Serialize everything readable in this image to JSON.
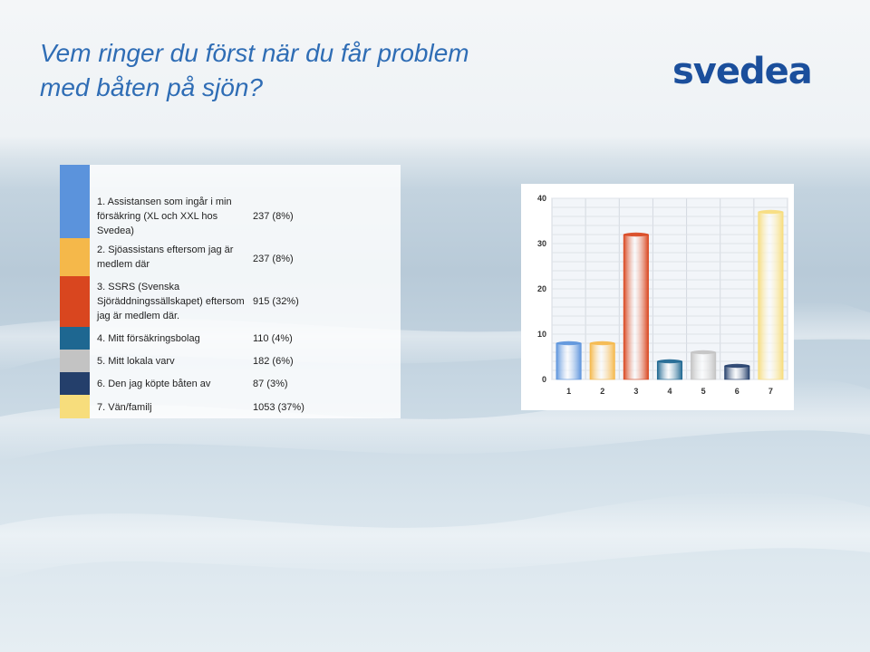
{
  "slide": {
    "title_line1": "Vem ringer du först när du får problem",
    "title_line2": "med båten på sjön?",
    "logo": "svedea"
  },
  "table": {
    "rows": [
      {
        "label": "1. Assistansen som ingår i min försäkring (XL och XXL hos Svedea)",
        "count": "237 (8%)",
        "color": "#5b93dc"
      },
      {
        "label": "2. Sjöassistans eftersom jag är medlem där",
        "count": "237 (8%)",
        "color": "#f5b84a"
      },
      {
        "label": "3. SSRS (Svenska Sjöräddningssällskapet) eftersom jag är medlem där.",
        "count": "915 (32%)",
        "color": "#d9461f"
      },
      {
        "label": "4. Mitt försäkringsbolag",
        "count": "110 (4%)",
        "color": "#1e6791"
      },
      {
        "label": "5. Mitt lokala varv",
        "count": "182 (6%)",
        "color": "#c3c3c3"
      },
      {
        "label": "6. Den jag köpte båten av",
        "count": "87 (3%)",
        "color": "#243f6b"
      },
      {
        "label": "7. Vän/familj",
        "count": "1053 (37%)",
        "color": "#f7dd7c"
      }
    ]
  },
  "chart_data": {
    "type": "bar",
    "categories": [
      "1",
      "2",
      "3",
      "4",
      "5",
      "6",
      "7"
    ],
    "values": [
      8,
      8,
      32,
      4,
      6,
      3,
      37
    ],
    "ylim": [
      0,
      40
    ],
    "yticks": [
      "0",
      "10",
      "20",
      "30",
      "40"
    ],
    "grid": true,
    "colors": [
      "#5b93dc",
      "#f5b84a",
      "#d9461f",
      "#1e6791",
      "#c3c3c3",
      "#243f6b",
      "#f7dd7c"
    ]
  }
}
